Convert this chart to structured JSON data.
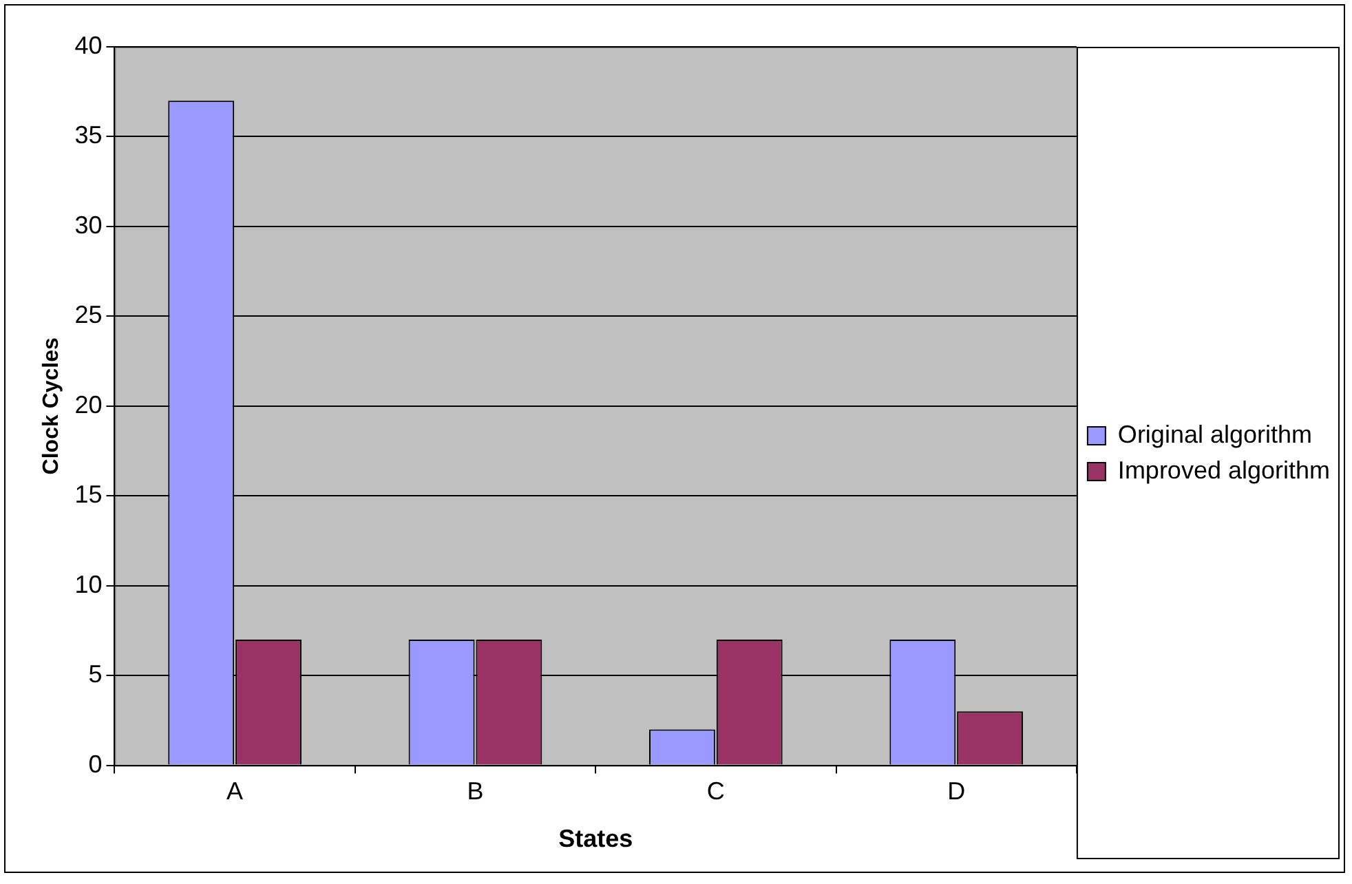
{
  "chart_data": {
    "type": "bar",
    "xlabel": "States",
    "ylabel": "Clock Cycles",
    "categories": [
      "A",
      "B",
      "C",
      "D"
    ],
    "series": [
      {
        "name": "Original algorithm",
        "color": "#9999ff",
        "values": [
          37,
          7,
          2,
          7
        ]
      },
      {
        "name": "Improved algorithm",
        "color": "#993366",
        "values": [
          7,
          7,
          7,
          3
        ]
      }
    ],
    "ylim": [
      0,
      40
    ],
    "yticks": [
      0,
      5,
      10,
      15,
      20,
      25,
      30,
      35,
      40
    ],
    "grid": "y",
    "legend": "right"
  }
}
